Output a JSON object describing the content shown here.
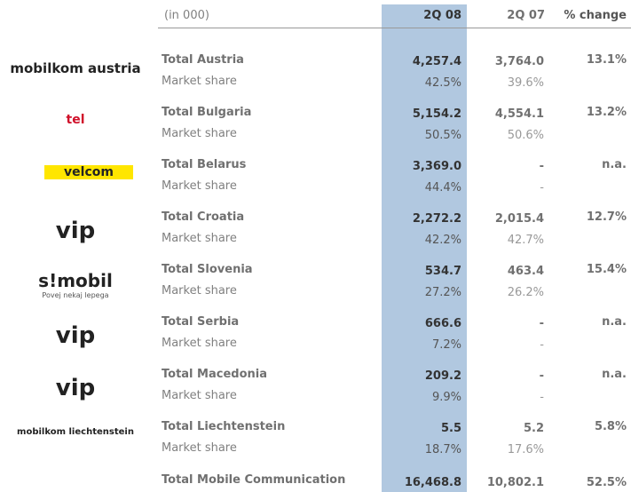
{
  "header": {
    "unit": "(in 000)",
    "col1": "2Q 08",
    "col2": "2Q 07",
    "col3": "% change"
  },
  "rows": [
    {
      "logo": "mobilkom austria",
      "name": "Total Austria",
      "v08": "4,257.4",
      "v07": "3,764.0",
      "change": "13.1%",
      "share_label": "Market share",
      "share08": "42.5%",
      "share07": "39.6%"
    },
    {
      "logo": "tel",
      "name": "Total Bulgaria",
      "v08": "5,154.2",
      "v07": "4,554.1",
      "change": "13.2%",
      "share_label": "Market share",
      "share08": "50.5%",
      "share07": "50.6%"
    },
    {
      "logo": "velcom",
      "name": "Total Belarus",
      "v08": "3,369.0",
      "v07": "-",
      "change": "n.a.",
      "share_label": "Market share",
      "share08": "44.4%",
      "share07": "-"
    },
    {
      "logo": "vip",
      "name": "Total Croatia",
      "v08": "2,272.2",
      "v07": "2,015.4",
      "change": "12.7%",
      "share_label": "Market share",
      "share08": "42.2%",
      "share07": "42.7%"
    },
    {
      "logo": "s!mobil",
      "logo_sub": "Povej nekaj lepega",
      "name": "Total Slovenia",
      "v08": "534.7",
      "v07": "463.4",
      "change": "15.4%",
      "share_label": "Market share",
      "share08": "27.2%",
      "share07": "26.2%"
    },
    {
      "logo": "vip",
      "name": "Total Serbia",
      "v08": "666.6",
      "v07": "-",
      "change": "n.a.",
      "share_label": "Market share",
      "share08": "7.2%",
      "share07": "-"
    },
    {
      "logo": "vip",
      "name": "Total Macedonia",
      "v08": "209.2",
      "v07": "-",
      "change": "n.a.",
      "share_label": "Market share",
      "share08": "9.9%",
      "share07": "-"
    },
    {
      "logo": "mobilkom liechtenstein",
      "name": "Total Liechtenstein",
      "v08": "5.5",
      "v07": "5.2",
      "change": "5.8%",
      "share_label": "Market share",
      "share08": "18.7%",
      "share07": "17.6%"
    }
  ],
  "total": {
    "name": "Total Mobile Communication",
    "v08": "16,468.8",
    "v07": "10,802.1",
    "change": "52.5%"
  }
}
